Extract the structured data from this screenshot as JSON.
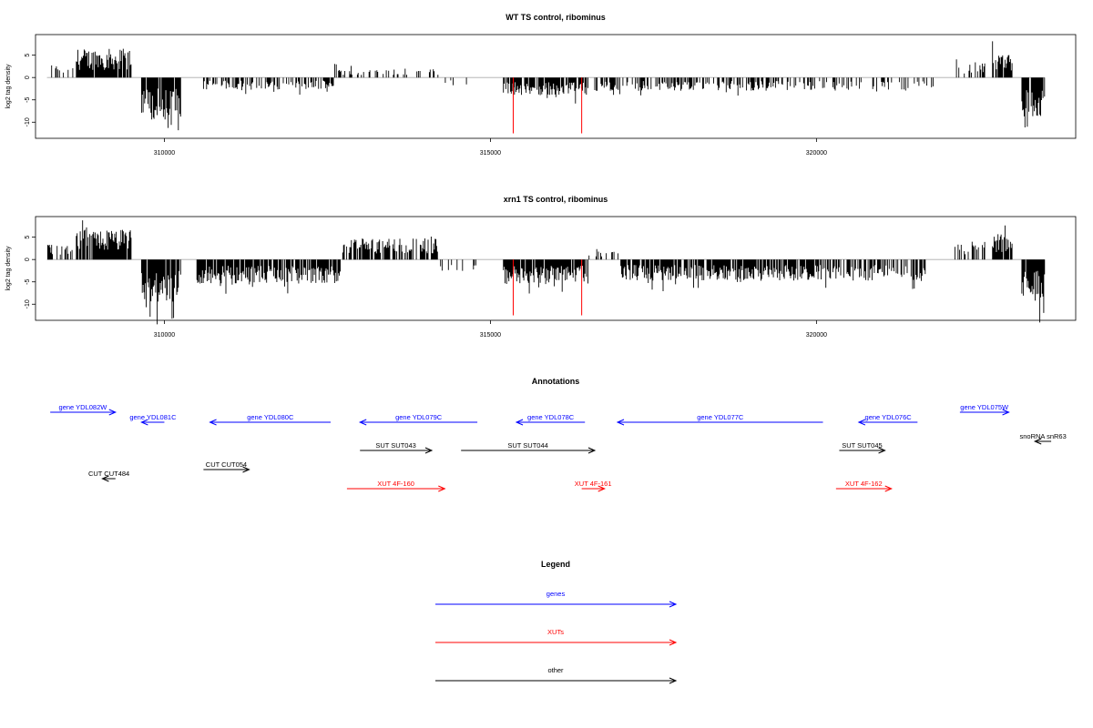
{
  "chart_data": [
    {
      "type": "bar",
      "title": "WT TS control, ribominus",
      "ylabel": "log2 tag density",
      "ylim": [
        -13,
        9
      ],
      "xlim": [
        308150,
        323850
      ],
      "yticks": [
        -10,
        -5,
        0,
        5
      ],
      "xticks": [
        310000,
        315000,
        320000
      ],
      "grid": false,
      "colors": {
        "bars": "#000000",
        "highlight": "#ff0000",
        "baseline": "#aaaaaa"
      },
      "segments": [
        {
          "start": 308200,
          "end": 308600,
          "level": 2.2,
          "density": 0.3
        },
        {
          "start": 308650,
          "end": 309500,
          "level": 4.8,
          "density": 0.9
        },
        {
          "start": 309650,
          "end": 310250,
          "level": -7.0,
          "density": 0.9
        },
        {
          "start": 310600,
          "end": 312600,
          "level": -2.0,
          "density": 0.55
        },
        {
          "start": 312600,
          "end": 314200,
          "level": 1.6,
          "density": 0.25
        },
        {
          "start": 314200,
          "end": 314800,
          "level": -1.2,
          "density": 0.15
        },
        {
          "start": 315200,
          "end": 316500,
          "level": -3.0,
          "density": 0.85
        },
        {
          "start": 316600,
          "end": 320000,
          "level": -2.2,
          "density": 0.5
        },
        {
          "start": 320000,
          "end": 321800,
          "level": -2.2,
          "density": 0.3
        },
        {
          "start": 322100,
          "end": 322600,
          "level": 2.6,
          "density": 0.35
        },
        {
          "start": 322700,
          "end": 323000,
          "level": 4.0,
          "density": 0.9
        },
        {
          "start": 323150,
          "end": 323500,
          "level": -6.5,
          "density": 0.9
        }
      ],
      "highlights": [
        {
          "x": 315350,
          "y": -12.5
        },
        {
          "x": 316400,
          "y": -12.5
        }
      ]
    },
    {
      "type": "bar",
      "title": "xrn1 TS control, ribominus",
      "ylabel": "log2 tag density",
      "ylim": [
        -13,
        9
      ],
      "xlim": [
        308150,
        323850
      ],
      "yticks": [
        -10,
        -5,
        0,
        5
      ],
      "xticks": [
        310000,
        315000,
        320000
      ],
      "grid": false,
      "colors": {
        "bars": "#000000",
        "highlight": "#ff0000",
        "baseline": "#aaaaaa"
      },
      "segments": [
        {
          "start": 308200,
          "end": 308600,
          "level": 2.5,
          "density": 0.35
        },
        {
          "start": 308650,
          "end": 309500,
          "level": 5.0,
          "density": 0.95
        },
        {
          "start": 309650,
          "end": 310250,
          "level": -7.2,
          "density": 0.95
        },
        {
          "start": 310500,
          "end": 312700,
          "level": -4.0,
          "density": 0.85
        },
        {
          "start": 312700,
          "end": 314200,
          "level": 3.5,
          "density": 0.7
        },
        {
          "start": 314200,
          "end": 314800,
          "level": -2.0,
          "density": 0.2
        },
        {
          "start": 315200,
          "end": 316500,
          "level": -4.0,
          "density": 0.9
        },
        {
          "start": 316500,
          "end": 317000,
          "level": 1.8,
          "density": 0.25
        },
        {
          "start": 317000,
          "end": 320000,
          "level": -3.5,
          "density": 0.8
        },
        {
          "start": 320000,
          "end": 321700,
          "level": -3.5,
          "density": 0.55
        },
        {
          "start": 322100,
          "end": 322600,
          "level": 3.0,
          "density": 0.35
        },
        {
          "start": 322700,
          "end": 323000,
          "level": 4.2,
          "density": 0.9
        },
        {
          "start": 323150,
          "end": 323500,
          "level": -7.0,
          "density": 0.95
        }
      ],
      "highlights": [
        {
          "x": 315350,
          "y": -12.5
        },
        {
          "x": 316400,
          "y": -12.5
        }
      ]
    }
  ],
  "annotations": {
    "title": "Annotations",
    "xlim": [
      308150,
      323850
    ],
    "features": [
      {
        "label": "gene YDL082W",
        "kind": "genes",
        "start": 308250,
        "end": 309250,
        "strand": "+",
        "row": 0
      },
      {
        "label": "gene YDL081C",
        "kind": "genes",
        "start": 309650,
        "end": 310000,
        "strand": "-",
        "row": 1
      },
      {
        "label": "gene YDL080C",
        "kind": "genes",
        "start": 310700,
        "end": 312550,
        "strand": "-",
        "row": 1
      },
      {
        "label": "gene YDL079C",
        "kind": "genes",
        "start": 313000,
        "end": 314800,
        "strand": "-",
        "row": 1
      },
      {
        "label": "gene YDL078C",
        "kind": "genes",
        "start": 315400,
        "end": 316450,
        "strand": "-",
        "row": 1
      },
      {
        "label": "gene YDL077C",
        "kind": "genes",
        "start": 316950,
        "end": 320100,
        "strand": "-",
        "row": 1
      },
      {
        "label": "gene YDL076C",
        "kind": "genes",
        "start": 320650,
        "end": 321550,
        "strand": "-",
        "row": 1
      },
      {
        "label": "gene YDL075W",
        "kind": "genes",
        "start": 322200,
        "end": 322950,
        "strand": "+",
        "row": 0
      },
      {
        "label": "snoRNA snR63",
        "kind": "other",
        "start": 323350,
        "end": 323600,
        "strand": "-",
        "row": 2
      },
      {
        "label": "SUT SUT043",
        "kind": "other",
        "start": 313000,
        "end": 314100,
        "strand": "+",
        "row": 3
      },
      {
        "label": "SUT SUT044",
        "kind": "other",
        "start": 314550,
        "end": 316600,
        "strand": "+",
        "row": 3
      },
      {
        "label": "SUT SUT045",
        "kind": "other",
        "start": 320350,
        "end": 321050,
        "strand": "+",
        "row": 3
      },
      {
        "label": "CUT CUT484",
        "kind": "other",
        "start": 309050,
        "end": 309250,
        "strand": "-",
        "row": 5
      },
      {
        "label": "CUT CUT054",
        "kind": "other",
        "start": 310600,
        "end": 311300,
        "strand": "+",
        "row": 4
      },
      {
        "label": "XUT 4F-160",
        "kind": "XUTs",
        "start": 312800,
        "end": 314300,
        "strand": "+",
        "row": 6
      },
      {
        "label": "XUT 4F-161",
        "kind": "XUTs",
        "start": 316400,
        "end": 316750,
        "strand": "+",
        "row": 6
      },
      {
        "label": "XUT 4F-162",
        "kind": "XUTs",
        "start": 320300,
        "end": 321150,
        "strand": "+",
        "row": 6
      }
    ]
  },
  "legend": {
    "title": "Legend",
    "items": [
      {
        "label": "genes",
        "color": "#0000ff"
      },
      {
        "label": "XUTs",
        "color": "#ff0000"
      },
      {
        "label": "other",
        "color": "#000000"
      }
    ]
  }
}
